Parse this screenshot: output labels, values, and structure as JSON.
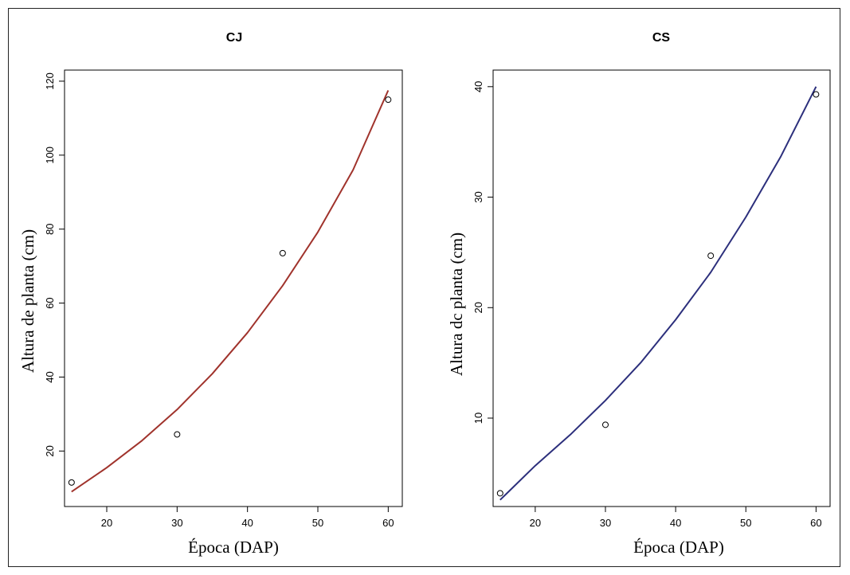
{
  "chart_data": [
    {
      "type": "scatter",
      "title": "CJ",
      "xlabel": "Época (DAP)",
      "ylabel": "Altura de planta (cm)",
      "xlim": [
        14,
        62
      ],
      "ylim": [
        5,
        123
      ],
      "xticks": [
        20,
        30,
        40,
        50,
        60
      ],
      "yticks": [
        20,
        40,
        60,
        80,
        100,
        120
      ],
      "x": [
        15,
        30,
        45,
        60
      ],
      "y": [
        11.5,
        24.5,
        73.5,
        115
      ],
      "fit_curve": {
        "color": "#a0332c",
        "x": [
          15,
          20,
          25,
          30,
          35,
          40,
          45,
          50,
          55,
          60
        ],
        "y": [
          9,
          15.5,
          22.8,
          31.2,
          40.9,
          52,
          64.7,
          79.2,
          96,
          117.5
        ]
      },
      "grid": false
    },
    {
      "type": "scatter",
      "title": "CS",
      "xlabel": "Época (DAP)",
      "ylabel": "Altura dc planta (cm)",
      "xlim": [
        14,
        62
      ],
      "ylim": [
        2,
        41.5
      ],
      "xticks": [
        20,
        30,
        40,
        50,
        60
      ],
      "yticks": [
        10,
        20,
        30,
        40
      ],
      "x": [
        15,
        30,
        45,
        60
      ],
      "y": [
        3.2,
        9.4,
        24.7,
        39.3
      ],
      "fit_curve": {
        "color": "#2c2f7c",
        "x": [
          15,
          20,
          25,
          30,
          35,
          40,
          45,
          50,
          55,
          60
        ],
        "y": [
          2.6,
          5.7,
          8.5,
          11.6,
          15,
          18.9,
          23.2,
          28.2,
          33.7,
          40
        ]
      },
      "grid": false
    }
  ]
}
